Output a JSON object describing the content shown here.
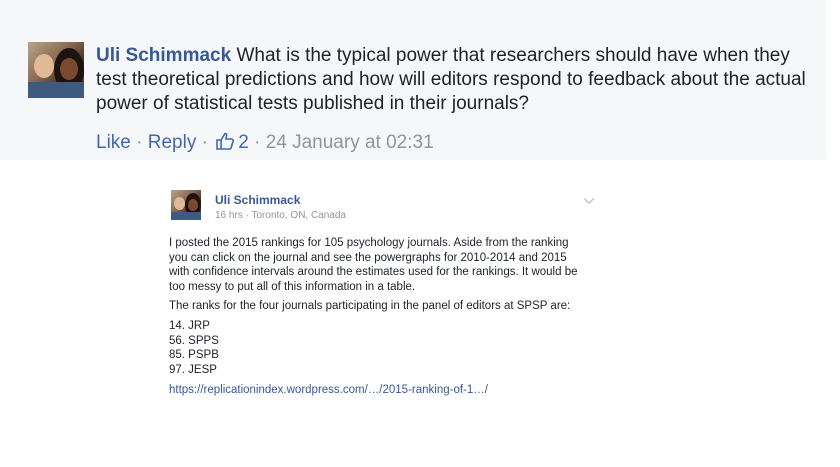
{
  "comment": {
    "author": "Uli Schimmack",
    "text": "What is the typical power that researchers should have when they test theoretical predictions and how will editors respond to feedback about the actual power of statistical tests published in their journals?",
    "actions": {
      "like": "Like",
      "sep1": " · ",
      "reply": "Reply",
      "sep2": " · ",
      "like_count": "2",
      "sep3": " · ",
      "timestamp": "24 January at 02:31"
    },
    "icons": {
      "like": "thumbs-up-icon"
    },
    "colors": {
      "author": "#365899",
      "action": "#4267b2",
      "meta": "#90949c",
      "background": "#f6f7f9"
    }
  },
  "post": {
    "author": "Uli Schimmack",
    "meta": "16 hrs · Toronto, ON, Canada",
    "paragraphs": [
      "I posted the 2015 rankings for 105 psychology journals. Aside from the ranking you can click on the journal and see the powergraphs for 2010-2014 and 2015 with confidence intervals around the estimates used for the rankings. It would be too messy to put all of this information in a table.",
      "The ranks for the four journals participating in the panel of editors at SPSP are:"
    ],
    "ranks": [
      "14. JRP",
      "56. SPPS",
      "85. PSPB",
      "97. JESP"
    ],
    "link": "https://replicationindex.wordpress.com/…/2015-ranking-of-1…/",
    "icons": {
      "menu": "chevron-down-icon"
    }
  }
}
